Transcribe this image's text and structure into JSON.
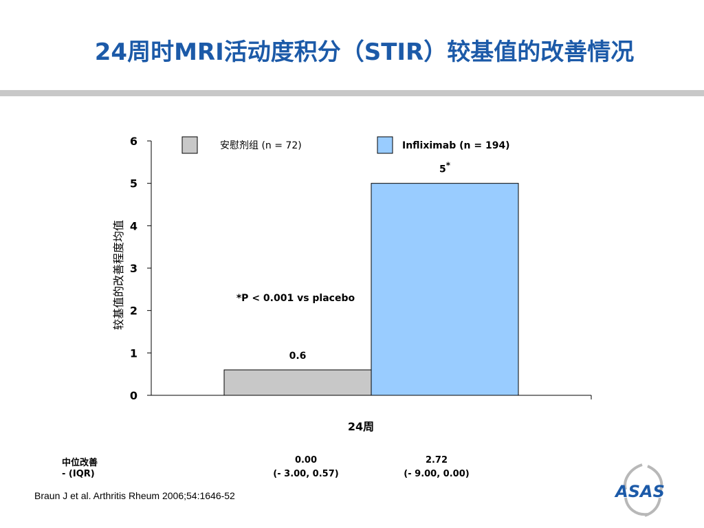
{
  "title": "24周时MRI活动度积分（STIR）较基值的改善情况",
  "chart_data": {
    "type": "bar",
    "categories": [
      "24周"
    ],
    "series": [
      {
        "name": "安慰剂组 (n = 72)",
        "values": [
          0.6
        ],
        "label": "0.6",
        "color": "#c8c8c8"
      },
      {
        "name": "Infliximab (n = 194)",
        "values": [
          5
        ],
        "label": "5",
        "marker": "*",
        "color": "#99ccff"
      }
    ],
    "ylabel": "较基值的改善程度均值",
    "xlabel": "24周",
    "ylim": [
      0,
      6
    ],
    "yticks": [
      "0",
      "1",
      "2",
      "3",
      "4",
      "5",
      "6"
    ],
    "annotation": "*P < 0.001 vs placebo",
    "legend_position": "top"
  },
  "stats": {
    "row_label_line1": "中位改善",
    "row_label_line2": "- (IQR)",
    "placebo_median": "0.00",
    "placebo_iqr": "(- 3.00, 0.57)",
    "infliximab_median": "2.72",
    "infliximab_iqr": "(- 9.00, 0.00)"
  },
  "citation": "Braun J et al. Arthritis Rheum 2006;54:1646-52",
  "logo_text": "ASAS",
  "colors": {
    "title": "#1c5aa8",
    "logo": "#1c5aa8"
  }
}
